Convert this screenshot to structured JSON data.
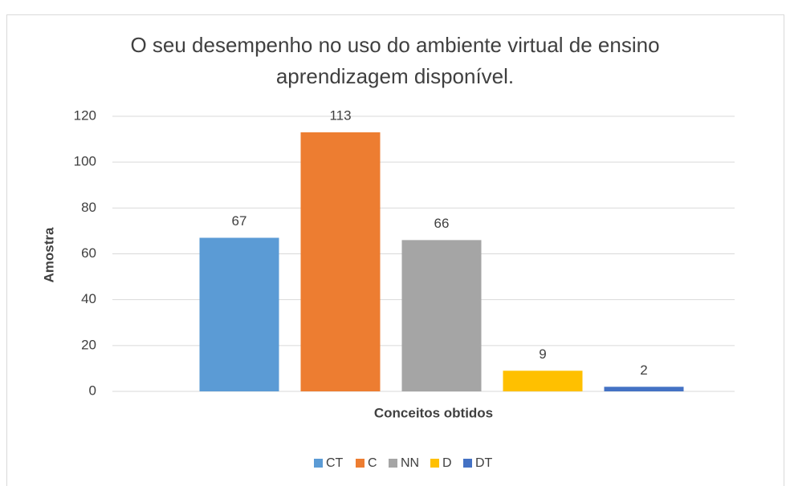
{
  "chart_data": {
    "type": "bar",
    "title": [
      "O seu desempenho  no uso do ambiente virtual de ensino",
      "aprendizagem  disponível."
    ],
    "x_label": "Conceitos obtidos",
    "y_label": "Amostra",
    "categories": [
      null
    ],
    "series": [
      {
        "name": "CT",
        "color": "#5b9bd5",
        "values": [
          67
        ]
      },
      {
        "name": "C",
        "color": "#ed7d31",
        "values": [
          113
        ]
      },
      {
        "name": "NN",
        "color": "#a5a5a5",
        "values": [
          66
        ]
      },
      {
        "name": "D",
        "color": "#ffc000",
        "values": [
          9
        ]
      },
      {
        "name": "DT",
        "color": "#4472c4",
        "values": [
          2
        ]
      }
    ],
    "ylim": [
      0,
      120
    ],
    "yticks": [
      0,
      20,
      40,
      60,
      80,
      100,
      120
    ],
    "grid": true,
    "legend": "bottom"
  }
}
